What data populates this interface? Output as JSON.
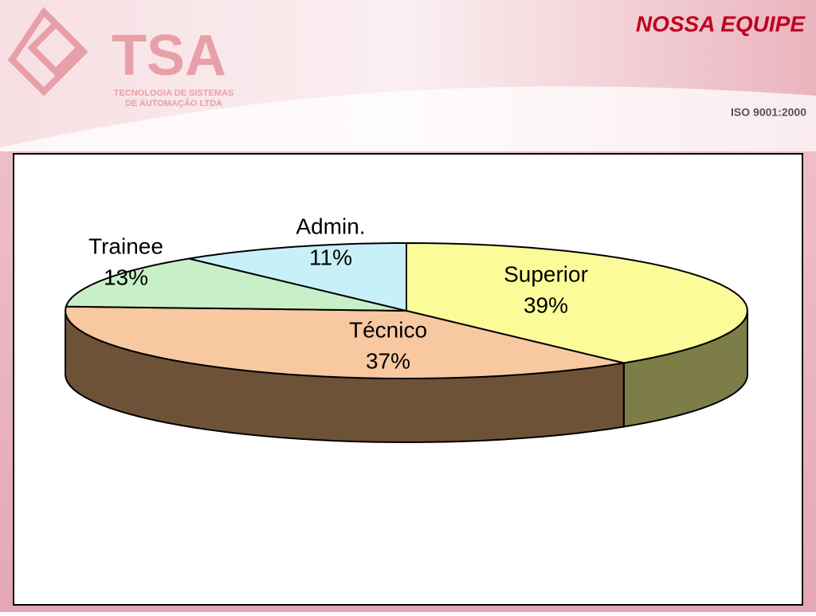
{
  "header": {
    "logo": "TSA",
    "company_line1": "TECNOLOGIA DE SISTEMAS",
    "company_line2": "DE AUTOMAÇÃO LTDA",
    "title": "NOSSA EQUIPE",
    "certification": "ISO 9001:2000"
  },
  "chart_data": {
    "type": "pie3d",
    "categories": [
      "Superior",
      "Técnico",
      "Trainee",
      "Admin."
    ],
    "values": [
      39,
      37,
      13,
      11
    ],
    "value_labels": [
      "39%",
      "37%",
      "13%",
      "11%"
    ],
    "colors": [
      "#fbfb9a",
      "#f8c8a0",
      "#c8f0c8",
      "#c8f0f8"
    ],
    "side_colors": [
      "#7d7d48",
      "#6e5238",
      "#5a7a5a",
      "#5a7a80"
    ]
  }
}
